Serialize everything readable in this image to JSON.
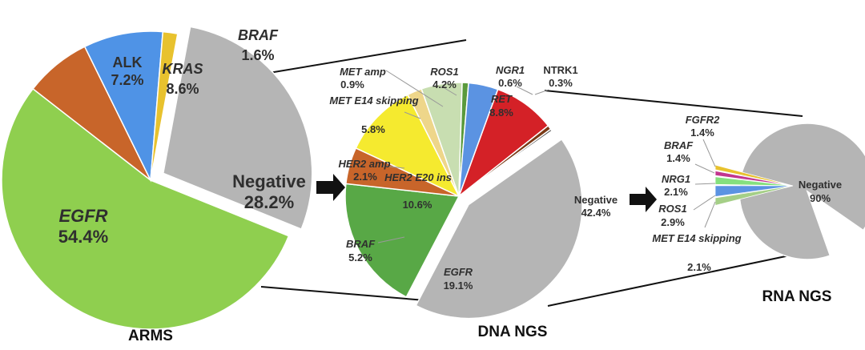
{
  "chart_data": [
    {
      "type": "pie",
      "title": "ARMS",
      "slices": [
        {
          "label": "EGFR",
          "value": 54.4,
          "display": "54.4%",
          "italic": true,
          "color": "#8fcf4f"
        },
        {
          "label": "ALK",
          "value": 7.2,
          "display": "7.2%",
          "italic": false,
          "color": "#c8652a"
        },
        {
          "label": "KRAS",
          "value": 8.6,
          "display": "8.6%",
          "italic": true,
          "color": "#4f93e6"
        },
        {
          "label": "BRAF",
          "value": 1.6,
          "display": "1.6%",
          "italic": true,
          "color": "#e8c22e"
        },
        {
          "label": "Negative",
          "value": 28.2,
          "display": "28.2%",
          "italic": false,
          "color": "#b5b5b5",
          "exploded": true
        }
      ]
    },
    {
      "type": "pie",
      "title": "DNA NGS",
      "slices": [
        {
          "label": "RET",
          "value": 8.8,
          "display": "8.8%",
          "italic": true,
          "color": "#d42127"
        },
        {
          "label": "NGR1",
          "value": 0.6,
          "display": "0.6%",
          "italic": true,
          "color": "#7a3a16"
        },
        {
          "label": "NTRK1",
          "value": 0.3,
          "display": "0.3%",
          "italic": false,
          "color": "#555555"
        },
        {
          "label": "Negative",
          "value": 42.4,
          "display": "42.4%",
          "italic": false,
          "color": "#b5b5b5",
          "exploded": true
        },
        {
          "label": "EGFR",
          "value": 19.1,
          "display": "19.1%",
          "italic": true,
          "color": "#58a846"
        },
        {
          "label": "BRAF",
          "value": 5.2,
          "display": "5.2%",
          "italic": true,
          "color": "#c8652a"
        },
        {
          "label": "HER2 E20 ins",
          "value": 10.6,
          "display": "10.6%",
          "italic": true,
          "color": "#f5ea2f"
        },
        {
          "label": "HER2 amp",
          "value": 2.1,
          "display": "2.1%",
          "italic": true,
          "color": "#eed68a"
        },
        {
          "label": "MET E14 skipping",
          "value": 5.8,
          "display": "5.8%",
          "italic": true,
          "color": "#c8deb1"
        },
        {
          "label": "MET amp",
          "value": 0.9,
          "display": "0.9%",
          "italic": true,
          "color": "#5a9a3c"
        },
        {
          "label": "ROS1",
          "value": 4.2,
          "display": "4.2%",
          "italic": true,
          "color": "#5b93e2"
        }
      ]
    },
    {
      "type": "pie",
      "title": "RNA NGS",
      "slices": [
        {
          "label": "Negative",
          "value": 90,
          "display": "90%",
          "italic": false,
          "color": "#b5b5b5"
        },
        {
          "label": "MET E14 skipping",
          "value": 2.1,
          "display": "2.1%",
          "italic": true,
          "color": "#a5cf87"
        },
        {
          "label": "ROS1",
          "value": 2.9,
          "display": "2.9%",
          "italic": true,
          "color": "#5b93e2"
        },
        {
          "label": "NRG1",
          "value": 2.1,
          "display": "2.1%",
          "italic": true,
          "color": "#85e07e"
        },
        {
          "label": "BRAF",
          "value": 1.4,
          "display": "1.4%",
          "italic": true,
          "color": "#c2368f"
        },
        {
          "label": "FGFR2",
          "value": 1.4,
          "display": "1.4%",
          "italic": true,
          "color": "#e8c22e"
        }
      ]
    }
  ]
}
